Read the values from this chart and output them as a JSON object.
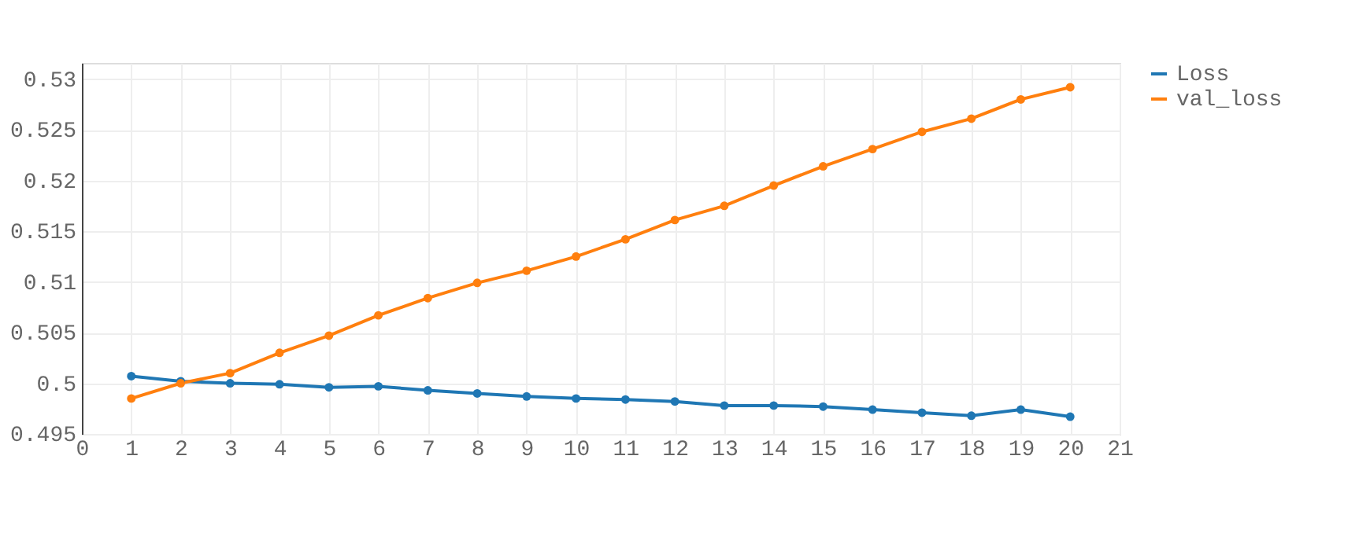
{
  "chart_data": {
    "type": "line",
    "x": [
      1,
      2,
      3,
      4,
      5,
      6,
      7,
      8,
      9,
      10,
      11,
      12,
      13,
      14,
      15,
      16,
      17,
      18,
      19,
      20
    ],
    "series": [
      {
        "name": "Loss",
        "color": "#1f77b4",
        "values": [
          0.5007,
          0.5002,
          0.5,
          0.4999,
          0.4996,
          0.4997,
          0.4993,
          0.499,
          0.4987,
          0.4985,
          0.4984,
          0.4982,
          0.4978,
          0.4978,
          0.4977,
          0.4974,
          0.4971,
          0.4968,
          0.4974,
          0.4967
        ]
      },
      {
        "name": "val_loss",
        "color": "#ff7f0e",
        "values": [
          0.4985,
          0.5,
          0.501,
          0.503,
          0.5047,
          0.5067,
          0.5084,
          0.5099,
          0.5111,
          0.5125,
          0.5142,
          0.5161,
          0.5175,
          0.5195,
          0.5214,
          0.5231,
          0.5248,
          0.5261,
          0.528,
          0.5292
        ]
      }
    ],
    "xlim": [
      0,
      21
    ],
    "xticks": [
      0,
      1,
      2,
      3,
      4,
      5,
      6,
      7,
      8,
      9,
      10,
      11,
      12,
      13,
      14,
      15,
      16,
      17,
      18,
      19,
      20,
      21
    ],
    "ylim": [
      0.495,
      0.5316
    ],
    "yticks": [
      0.495,
      0.5,
      0.505,
      0.51,
      0.515,
      0.52,
      0.525,
      0.53
    ],
    "grid": true,
    "legend": "top right",
    "marker": "circle",
    "line_style": "solid"
  }
}
